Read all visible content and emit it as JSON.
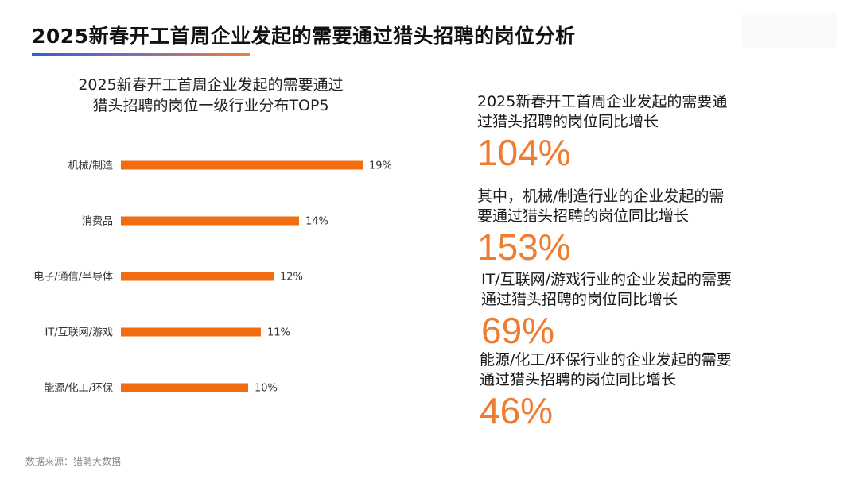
{
  "page": {
    "title": "2025新春开工首周企业发起的需要通过猎头招聘的岗位分析",
    "source_note": "数据来源：猎聘大数据"
  },
  "colors": {
    "bar": "#f26d0f",
    "accent_text": "#ee7d31",
    "divider": "#bdbdbd"
  },
  "chart_data": {
    "type": "bar",
    "orientation": "horizontal",
    "title_lines": [
      "2025新春开工首周企业发起的需要通过",
      "猎头招聘的岗位一级行业分布TOP5"
    ],
    "categories": [
      "机械/制造",
      "消费品",
      "电子/通信/半导体",
      "IT/互联网/游戏",
      "能源/化工/环保"
    ],
    "values": [
      19,
      14,
      12,
      11,
      10
    ],
    "value_labels": [
      "19%",
      "14%",
      "12%",
      "11%",
      "10%"
    ],
    "unit": "%",
    "xlim": [
      0,
      19
    ],
    "grid": false,
    "legend": "none"
  },
  "stats": [
    {
      "label_lines": [
        "2025新春开工首周企业发起的需要通",
        "过猎头招聘的岗位同比增长"
      ],
      "value": "104%"
    },
    {
      "label_lines": [
        "其中，机械/制造行业的企业发起的需",
        "要通过猎头招聘的岗位同比增长"
      ],
      "value": "153%"
    },
    {
      "label_lines": [
        "IT/互联网/游戏行业的企业发起的需要",
        "通过猎头招聘的岗位同比增长"
      ],
      "value": "69%"
    },
    {
      "label_lines": [
        "能源/化工/环保行业的企业发起的需要",
        "通过猎头招聘的岗位同比增长"
      ],
      "value": "46%"
    }
  ]
}
